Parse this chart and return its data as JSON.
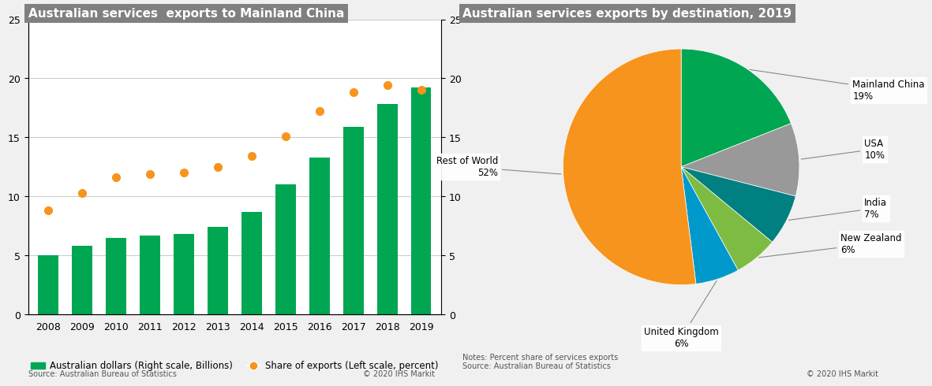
{
  "left_title": "Australian services  exports to Mainland China",
  "right_title": "Australian services exports by destination, 2019",
  "bar_years": [
    "2008",
    "2009",
    "2010",
    "2011",
    "2012",
    "2013",
    "2014",
    "2015",
    "2016",
    "2017",
    "2018",
    "2019"
  ],
  "bar_values": [
    5.0,
    5.8,
    6.5,
    6.7,
    6.8,
    7.4,
    8.7,
    11.0,
    13.3,
    15.9,
    17.8,
    19.2
  ],
  "dot_values": [
    8.8,
    10.3,
    11.6,
    11.9,
    12.0,
    12.5,
    13.4,
    15.1,
    17.2,
    18.8,
    19.4,
    19.0
  ],
  "bar_color": "#00a651",
  "dot_color": "#f7941d",
  "left_ylim": [
    0,
    25
  ],
  "right_ylim": [
    0,
    25
  ],
  "left_yticks": [
    0,
    5,
    10,
    15,
    20,
    25
  ],
  "right_yticks": [
    0,
    5,
    10,
    15,
    20,
    25
  ],
  "legend_bar_label": "Australian dollars (Right scale, Billions)",
  "legend_dot_label": "Share of exports (Left scale, percent)",
  "left_source": "Source: Australian Bureau of Statistics",
  "left_copyright": "© 2020 IHS Markit",
  "right_notes": "Notes: Percent share of services exports\nSource: Australian Bureau of Statistics",
  "right_copyright": "© 2020 IHS Markit",
  "title_bg_color": "#808080",
  "title_text_color": "#ffffff",
  "bg_color": "#f0f0f0",
  "panel_bg_color": "#ffffff",
  "pie_labels": [
    "Mainland China",
    "USA",
    "India",
    "New Zealand",
    "United Kingdom",
    "Rest of World"
  ],
  "pie_values": [
    19,
    10,
    7,
    6,
    6,
    52
  ],
  "pie_colors": [
    "#00a651",
    "#999999",
    "#008080",
    "#7dbb42",
    "#0099cc",
    "#f7941d"
  ],
  "pie_label_texts": [
    "Mainland China\n19%",
    "USA\n10%",
    "India\n7%",
    "New Zealand\n6%",
    "United Kingdom\n6%",
    "Rest of World\n52%"
  ]
}
